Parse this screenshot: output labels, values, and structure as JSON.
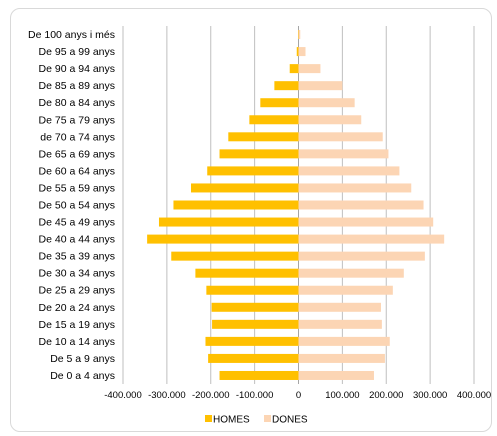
{
  "chart_data": {
    "type": "bar",
    "orientation": "horizontal",
    "title": "",
    "xlabel": "",
    "ylabel": "",
    "categories": [
      "De 100 anys i més",
      "De 95 a 99 anys",
      "De 90 a 94 anys",
      "De 85 a 89 anys",
      "De 80 a 84 anys",
      "De 75 a 79 anys",
      "de 70 a 74 anys",
      "De 65 a 69 anys",
      "De 60 a 64 anys",
      "De 55 a 59 anys",
      "De 50 a 54 anys",
      "De 45 a 49 anys",
      "De 40 a 44 anys",
      "De 35 a 39 anys",
      "De 30 a 34 anys",
      "De 25 a 29 anys",
      "De 20 a 24 anys",
      "De 15 a 19 anys",
      "De 10 a 14 anys",
      "De 5 a 9 anys",
      "De 0 a 4 anys"
    ],
    "series": [
      {
        "name": "HOMES",
        "color": "#ffc000",
        "values": [
          -1000,
          -4000,
          -20000,
          -55000,
          -87000,
          -112000,
          -160000,
          -180000,
          -208000,
          -245000,
          -285000,
          -318000,
          -345000,
          -290000,
          -235000,
          -210000,
          -198000,
          -197000,
          -212000,
          -206000,
          -180000
        ]
      },
      {
        "name": "DONES",
        "color": "#fcd5b4",
        "values": [
          4000,
          16000,
          50000,
          100000,
          128000,
          143000,
          192000,
          205000,
          230000,
          257000,
          285000,
          307000,
          332000,
          288000,
          240000,
          215000,
          188000,
          190000,
          208000,
          197000,
          172000
        ]
      }
    ],
    "xlim": [
      -400000,
      400000
    ],
    "xticks": [
      -400000,
      -300000,
      -200000,
      -100000,
      0,
      100000,
      200000,
      300000,
      400000
    ],
    "xtick_labels": [
      "-400.000",
      "-300.000",
      "-200.000",
      "-100.000",
      "0",
      "100.000",
      "200.000",
      "300.000",
      "400.000"
    ],
    "grid": true,
    "legend_position": "bottom"
  }
}
